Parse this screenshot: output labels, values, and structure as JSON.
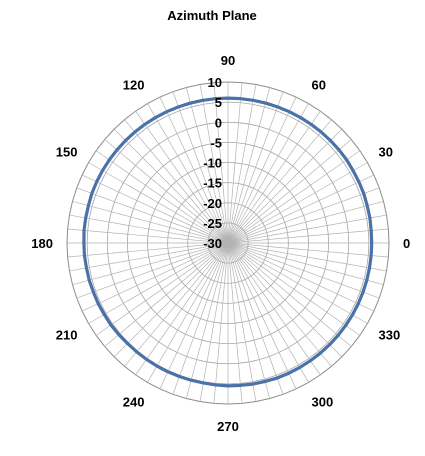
{
  "chart_data": {
    "type": "radar",
    "title": "Azimuth Plane",
    "angle_labels": [
      "90",
      "60",
      "30",
      "0",
      "330",
      "300",
      "270",
      "240",
      "210",
      "180",
      "150",
      "120"
    ],
    "radial_ticks": [
      "10",
      "5",
      "0",
      "-5",
      "-10",
      "-15",
      "-20",
      "-25",
      "-30"
    ],
    "rlim": [
      -30,
      10
    ],
    "angle_step_deg": 5,
    "series": [
      {
        "color": "#4a72a8",
        "values": [
          5.7,
          5.7,
          5.8,
          5.8,
          5.9,
          5.9,
          5.9,
          6.0,
          6.0,
          6.0,
          6.0,
          6.0,
          6.0,
          6.0,
          6.0,
          6.0,
          6.0,
          6.0,
          6.0,
          6.0,
          6.0,
          6.0,
          6.0,
          6.0,
          6.0,
          6.0,
          6.0,
          6.0,
          6.0,
          6.0,
          6.0,
          6.0,
          6.0,
          5.9,
          5.9,
          5.9,
          5.8,
          5.8,
          5.7,
          5.7,
          5.6,
          5.6,
          5.5,
          5.5,
          5.4,
          5.3,
          5.3,
          5.3,
          5.3,
          5.3,
          5.3,
          5.3,
          5.3,
          5.4,
          5.5,
          5.5,
          5.6,
          5.6,
          5.7,
          5.7,
          5.7,
          5.7,
          5.7,
          5.7,
          5.7,
          5.7,
          5.7,
          5.7,
          5.7,
          5.7,
          5.7,
          5.7
        ]
      }
    ],
    "grid": true,
    "legend": "none"
  }
}
